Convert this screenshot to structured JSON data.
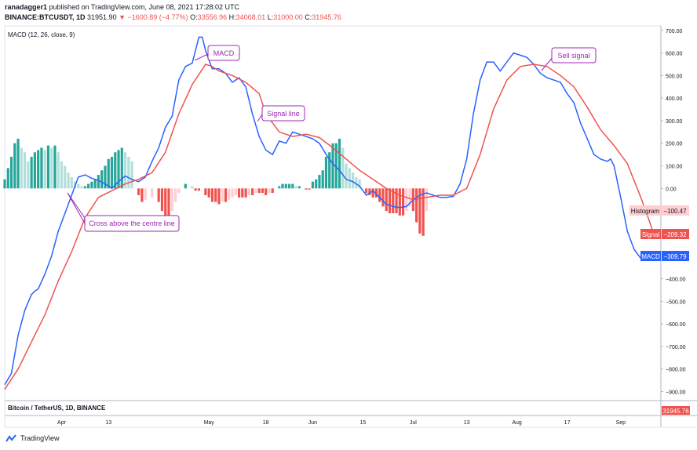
{
  "header": {
    "line1_user": "ranadagger1",
    "line1_rest": "published on TradingView.com, June 08, 2021 17:28:02 UTC",
    "symbol": "BINANCE:BTCUSDT, 1D",
    "last": "31951.90",
    "change": "▼ −1600.89 (−4.77%)",
    "open_lbl": "O:",
    "open": "33556.96",
    "high_lbl": "H:",
    "high": "34068.01",
    "low_lbl": "L:",
    "low": "31000.00",
    "close_lbl": "C:",
    "close": "31945.76"
  },
  "indicator_label": "MACD (12, 26, close, 9)",
  "bottom_pane_label": "Bitcoin / TetherUS, 1D, BINANCE",
  "bottom_price_tag": "31945.76",
  "footer_brand": "TradingView",
  "colors": {
    "macd": "#2962ff",
    "signal": "#ef5350",
    "hist_pos_strong": "#26a69a",
    "hist_pos_weak": "#b2dfdb",
    "hist_neg_strong": "#ef5350",
    "hist_neg_weak": "#ffcdd2",
    "annotation": "#9c27b0"
  },
  "annotations": [
    {
      "id": "macd",
      "text": "MACD"
    },
    {
      "id": "signal-line",
      "text": "Signal line"
    },
    {
      "id": "sell-signal",
      "text": "Sell signal"
    },
    {
      "id": "cross",
      "text": "Cross above the centre line"
    }
  ],
  "right_tags": [
    {
      "id": "histogram",
      "label": "Histogram",
      "value": "−100.47"
    },
    {
      "id": "signal",
      "label": "Signal",
      "value": "−209.32"
    },
    {
      "id": "macd",
      "label": "MACD",
      "value": "−309.79"
    }
  ],
  "chart_data": {
    "type": "line",
    "title": "MACD (12, 26, close, 9)",
    "ylim": [
      -940,
      720
    ],
    "y_ticks": [
      700,
      600,
      500,
      400,
      300,
      200,
      100,
      0,
      -100,
      -200,
      -300,
      -400,
      -500,
      -600,
      -700,
      -800,
      -900
    ],
    "y_tick_labels": [
      "700.00",
      "600.00",
      "500.00",
      "400.00",
      "300.00",
      "200.00",
      "100.00",
      "0.00",
      "−100.00",
      "−200.00",
      "−300.00",
      "−400.00",
      "−500.00",
      "−600.00",
      "−700.00",
      "−800.00",
      "−900.00"
    ],
    "x_tick_labels": [
      "Apr",
      "13",
      "May",
      "18",
      "Jun",
      "15",
      "Jul",
      "13",
      "Aug",
      "17",
      "Sep"
    ],
    "x_tick_days": [
      17,
      31,
      61,
      78,
      92,
      107,
      122,
      138,
      153,
      168,
      184
    ],
    "n_days": 196,
    "series": [
      {
        "name": "MACD",
        "points": [
          [
            0,
            -870
          ],
          [
            2,
            -820
          ],
          [
            4,
            -650
          ],
          [
            6,
            -540
          ],
          [
            8,
            -470
          ],
          [
            9,
            -455
          ],
          [
            10,
            -445
          ],
          [
            12,
            -380
          ],
          [
            14,
            -300
          ],
          [
            16,
            -190
          ],
          [
            18,
            -110
          ],
          [
            20,
            -30
          ],
          [
            22,
            50
          ],
          [
            24,
            60
          ],
          [
            26,
            45
          ],
          [
            28,
            35
          ],
          [
            30,
            20
          ],
          [
            32,
            0
          ],
          [
            34,
            30
          ],
          [
            36,
            55
          ],
          [
            38,
            40
          ],
          [
            40,
            30
          ],
          [
            42,
            50
          ],
          [
            44,
            120
          ],
          [
            46,
            180
          ],
          [
            48,
            270
          ],
          [
            50,
            320
          ],
          [
            52,
            480
          ],
          [
            54,
            540
          ],
          [
            56,
            555
          ],
          [
            58,
            670
          ],
          [
            59,
            670
          ],
          [
            60,
            610
          ],
          [
            62,
            530
          ],
          [
            64,
            530
          ],
          [
            66,
            510
          ],
          [
            68,
            470
          ],
          [
            70,
            490
          ],
          [
            72,
            450
          ],
          [
            74,
            330
          ],
          [
            76,
            230
          ],
          [
            78,
            170
          ],
          [
            80,
            150
          ],
          [
            82,
            210
          ],
          [
            84,
            200
          ],
          [
            86,
            250
          ],
          [
            88,
            240
          ],
          [
            90,
            230
          ],
          [
            92,
            220
          ],
          [
            94,
            200
          ],
          [
            96,
            150
          ],
          [
            98,
            110
          ],
          [
            100,
            80
          ],
          [
            102,
            40
          ],
          [
            104,
            30
          ],
          [
            106,
            10
          ],
          [
            108,
            -30
          ],
          [
            110,
            -10
          ],
          [
            112,
            -40
          ],
          [
            114,
            -70
          ],
          [
            116,
            -80
          ],
          [
            118,
            -85
          ],
          [
            120,
            -80
          ],
          [
            122,
            -50
          ],
          [
            124,
            -30
          ],
          [
            126,
            -20
          ],
          [
            128,
            -30
          ],
          [
            130,
            -40
          ],
          [
            132,
            -40
          ],
          [
            134,
            -35
          ],
          [
            136,
            20
          ],
          [
            138,
            130
          ],
          [
            140,
            330
          ],
          [
            142,
            480
          ],
          [
            144,
            560
          ],
          [
            146,
            560
          ],
          [
            148,
            520
          ],
          [
            150,
            560
          ],
          [
            152,
            600
          ],
          [
            154,
            590
          ],
          [
            156,
            580
          ],
          [
            158,
            550
          ],
          [
            160,
            510
          ],
          [
            162,
            490
          ],
          [
            164,
            480
          ],
          [
            166,
            470
          ],
          [
            168,
            420
          ],
          [
            170,
            380
          ],
          [
            172,
            290
          ],
          [
            174,
            220
          ],
          [
            176,
            150
          ],
          [
            178,
            130
          ],
          [
            180,
            120
          ],
          [
            181,
            130
          ],
          [
            182,
            100
          ],
          [
            184,
            -40
          ],
          [
            186,
            -190
          ],
          [
            188,
            -270
          ],
          [
            190,
            -310
          ]
        ]
      },
      {
        "name": "Signal",
        "points": [
          [
            0,
            -890
          ],
          [
            4,
            -800
          ],
          [
            8,
            -680
          ],
          [
            12,
            -560
          ],
          [
            16,
            -410
          ],
          [
            20,
            -280
          ],
          [
            24,
            -130
          ],
          [
            28,
            -40
          ],
          [
            32,
            -10
          ],
          [
            36,
            20
          ],
          [
            40,
            40
          ],
          [
            44,
            70
          ],
          [
            48,
            160
          ],
          [
            52,
            330
          ],
          [
            56,
            460
          ],
          [
            60,
            550
          ],
          [
            62,
            540
          ],
          [
            64,
            520
          ],
          [
            68,
            500
          ],
          [
            72,
            470
          ],
          [
            76,
            420
          ],
          [
            78,
            330
          ],
          [
            82,
            250
          ],
          [
            86,
            230
          ],
          [
            90,
            240
          ],
          [
            94,
            225
          ],
          [
            98,
            180
          ],
          [
            102,
            130
          ],
          [
            106,
            80
          ],
          [
            110,
            40
          ],
          [
            114,
            0
          ],
          [
            118,
            -30
          ],
          [
            122,
            -50
          ],
          [
            126,
            -40
          ],
          [
            130,
            -30
          ],
          [
            134,
            -30
          ],
          [
            138,
            0
          ],
          [
            142,
            150
          ],
          [
            146,
            350
          ],
          [
            150,
            480
          ],
          [
            154,
            540
          ],
          [
            158,
            550
          ],
          [
            162,
            540
          ],
          [
            166,
            500
          ],
          [
            170,
            450
          ],
          [
            174,
            360
          ],
          [
            178,
            260
          ],
          [
            182,
            190
          ],
          [
            186,
            110
          ],
          [
            190,
            -40
          ],
          [
            192,
            -120
          ],
          [
            194,
            -209
          ]
        ]
      }
    ],
    "histogram": {
      "name": "Histogram",
      "values": [
        [
          0,
          40
        ],
        [
          1,
          90
        ],
        [
          2,
          140
        ],
        [
          3,
          200
        ],
        [
          4,
          220
        ],
        [
          5,
          180
        ],
        [
          6,
          160
        ],
        [
          7,
          120
        ],
        [
          8,
          140
        ],
        [
          9,
          160
        ],
        [
          10,
          170
        ],
        [
          11,
          180
        ],
        [
          12,
          170
        ],
        [
          13,
          190
        ],
        [
          14,
          180
        ],
        [
          15,
          190
        ],
        [
          16,
          160
        ],
        [
          17,
          120
        ],
        [
          18,
          100
        ],
        [
          19,
          70
        ],
        [
          20,
          50
        ],
        [
          21,
          30
        ],
        [
          22,
          20
        ],
        [
          23,
          10
        ],
        [
          24,
          10
        ],
        [
          25,
          20
        ],
        [
          26,
          30
        ],
        [
          27,
          40
        ],
        [
          28,
          60
        ],
        [
          29,
          80
        ],
        [
          30,
          100
        ],
        [
          31,
          130
        ],
        [
          32,
          140
        ],
        [
          33,
          160
        ],
        [
          34,
          170
        ],
        [
          35,
          180
        ],
        [
          36,
          160
        ],
        [
          37,
          140
        ],
        [
          38,
          120
        ],
        [
          40,
          -30
        ],
        [
          41,
          -60
        ],
        [
          42,
          -50
        ],
        [
          44,
          -40
        ],
        [
          46,
          -60
        ],
        [
          47,
          -100
        ],
        [
          48,
          -140
        ],
        [
          49,
          -150
        ],
        [
          50,
          -100
        ],
        [
          51,
          -60
        ],
        [
          52,
          -20
        ],
        [
          54,
          20
        ],
        [
          56,
          10
        ],
        [
          57,
          -10
        ],
        [
          58,
          -10
        ],
        [
          60,
          -30
        ],
        [
          61,
          -40
        ],
        [
          62,
          -60
        ],
        [
          63,
          -60
        ],
        [
          64,
          -70
        ],
        [
          65,
          -60
        ],
        [
          66,
          -60
        ],
        [
          67,
          -50
        ],
        [
          68,
          -40
        ],
        [
          69,
          -30
        ],
        [
          70,
          -40
        ],
        [
          71,
          -40
        ],
        [
          72,
          -40
        ],
        [
          73,
          -30
        ],
        [
          74,
          -30
        ],
        [
          75,
          -20
        ],
        [
          76,
          -20
        ],
        [
          77,
          -20
        ],
        [
          78,
          -30
        ],
        [
          79,
          -20
        ],
        [
          80,
          -20
        ],
        [
          82,
          10
        ],
        [
          83,
          20
        ],
        [
          84,
          20
        ],
        [
          85,
          20
        ],
        [
          86,
          20
        ],
        [
          87,
          10
        ],
        [
          88,
          10
        ],
        [
          90,
          -5
        ],
        [
          91,
          -5
        ],
        [
          92,
          30
        ],
        [
          93,
          40
        ],
        [
          94,
          60
        ],
        [
          95,
          80
        ],
        [
          96,
          140
        ],
        [
          97,
          160
        ],
        [
          98,
          200
        ],
        [
          99,
          200
        ],
        [
          100,
          220
        ],
        [
          101,
          180
        ],
        [
          102,
          110
        ],
        [
          103,
          90
        ],
        [
          104,
          70
        ],
        [
          105,
          50
        ],
        [
          106,
          40
        ],
        [
          108,
          -20
        ],
        [
          109,
          -30
        ],
        [
          110,
          -40
        ],
        [
          111,
          -40
        ],
        [
          112,
          -60
        ],
        [
          113,
          -80
        ],
        [
          114,
          -100
        ],
        [
          115,
          -110
        ],
        [
          116,
          -110
        ],
        [
          117,
          -110
        ],
        [
          118,
          -120
        ],
        [
          119,
          -120
        ],
        [
          120,
          -100
        ],
        [
          121,
          -80
        ],
        [
          122,
          -100
        ],
        [
          123,
          -150
        ],
        [
          124,
          -200
        ],
        [
          125,
          -210
        ],
        [
          126,
          -100
        ]
      ]
    }
  }
}
